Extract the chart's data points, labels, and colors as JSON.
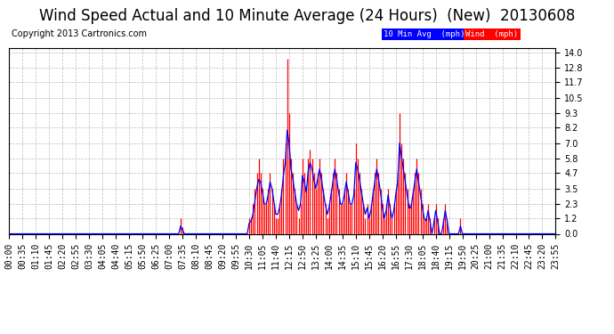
{
  "title": "Wind Speed Actual and 10 Minute Average (24 Hours)  (New)  20130608",
  "copyright": "Copyright 2013 Cartronics.com",
  "yticks": [
    0.0,
    1.2,
    2.3,
    3.5,
    4.7,
    5.8,
    7.0,
    8.2,
    9.3,
    10.5,
    11.7,
    12.8,
    14.0
  ],
  "ylim": [
    0.0,
    14.3
  ],
  "bg_color": "#ffffff",
  "plot_bg_color": "#ffffff",
  "grid_color": "#aaaaaa",
  "wind_color": "#ff0000",
  "avg_color": "#0000ff",
  "legend_avg_bg": "#0000ff",
  "legend_wind_bg": "#ff0000",
  "legend_avg_text": "10 Min Avg  (mph)",
  "legend_wind_text": "Wind  (mph)",
  "title_fontsize": 12,
  "copyright_fontsize": 7,
  "tick_fontsize": 7,
  "n_points": 288,
  "tick_step": 7,
  "wind_data": [
    0,
    0,
    0,
    0,
    0,
    0,
    0,
    0,
    0,
    0,
    0,
    0,
    0,
    0,
    0,
    0,
    0,
    0,
    0,
    0,
    0,
    0,
    0,
    0,
    0,
    0,
    0,
    0,
    0,
    0,
    0,
    0,
    0,
    0,
    0,
    0,
    0,
    0,
    0,
    0,
    0,
    0,
    0,
    0,
    0,
    0,
    0,
    0,
    0,
    0,
    0,
    0,
    0,
    0,
    0,
    0,
    0,
    0,
    0,
    0,
    0,
    0,
    0,
    0,
    0,
    0,
    0,
    0,
    0,
    0,
    0,
    0,
    0,
    0,
    0,
    0,
    0,
    0,
    0,
    0,
    0,
    0,
    0,
    0,
    0,
    0,
    0,
    0,
    0,
    0,
    1.2,
    0.5,
    0,
    0,
    0,
    0,
    0,
    0,
    0,
    0,
    0,
    0,
    0,
    0,
    0,
    0,
    0,
    0,
    0,
    0,
    0,
    0,
    0,
    0,
    0,
    0,
    0,
    0,
    0,
    0,
    0,
    0,
    0,
    0,
    0,
    0,
    1.2,
    1.2,
    2.3,
    3.5,
    4.7,
    5.8,
    4.7,
    3.5,
    2.3,
    2.3,
    3.5,
    4.7,
    3.5,
    2.3,
    1.2,
    1.2,
    2.3,
    3.5,
    5.8,
    7.0,
    13.5,
    9.3,
    5.8,
    4.7,
    3.5,
    2.3,
    1.2,
    2.3,
    5.8,
    4.7,
    3.5,
    5.8,
    6.5,
    5.8,
    4.7,
    3.5,
    4.7,
    5.8,
    4.7,
    3.5,
    2.3,
    1.2,
    2.3,
    3.5,
    4.7,
    5.8,
    4.7,
    3.5,
    2.3,
    2.3,
    3.5,
    4.7,
    3.5,
    2.3,
    2.3,
    3.5,
    7.0,
    5.8,
    4.7,
    3.5,
    2.3,
    1.2,
    2.3,
    1.2,
    2.3,
    3.5,
    4.7,
    5.8,
    4.7,
    3.5,
    2.3,
    1.2,
    2.3,
    3.5,
    2.3,
    1.2,
    2.3,
    3.5,
    4.7,
    9.3,
    7.0,
    5.8,
    4.7,
    3.5,
    2.3,
    2.3,
    3.5,
    4.7,
    5.8,
    4.7,
    3.5,
    2.3,
    1.2,
    1.2,
    2.3,
    1.2,
    0,
    1.2,
    2.3,
    1.2,
    0,
    0,
    1.2,
    2.3,
    1.2,
    0,
    0,
    0,
    0,
    0,
    0,
    1.2,
    0,
    0,
    0,
    0,
    0,
    0,
    0,
    0,
    0,
    0,
    0,
    0
  ],
  "avg_data": [
    0,
    0,
    0,
    0,
    0,
    0,
    0,
    0,
    0,
    0,
    0,
    0,
    0,
    0,
    0,
    0,
    0,
    0,
    0,
    0,
    0,
    0,
    0,
    0,
    0,
    0,
    0,
    0,
    0,
    0,
    0,
    0,
    0,
    0,
    0,
    0,
    0,
    0,
    0,
    0,
    0,
    0,
    0,
    0,
    0,
    0,
    0,
    0,
    0,
    0,
    0,
    0,
    0,
    0,
    0,
    0,
    0,
    0,
    0,
    0,
    0,
    0,
    0,
    0,
    0,
    0,
    0,
    0,
    0,
    0,
    0,
    0,
    0,
    0,
    0,
    0,
    0,
    0,
    0,
    0,
    0,
    0,
    0,
    0,
    0,
    0,
    0,
    0,
    0,
    0,
    0.6,
    0.3,
    0,
    0,
    0,
    0,
    0,
    0,
    0,
    0,
    0,
    0,
    0,
    0,
    0,
    0,
    0,
    0,
    0,
    0,
    0,
    0,
    0,
    0,
    0,
    0,
    0,
    0,
    0,
    0,
    0,
    0,
    0,
    0,
    0,
    0,
    0.8,
    1.0,
    1.5,
    2.5,
    3.5,
    4.2,
    4.0,
    3.2,
    2.3,
    2.3,
    3.0,
    4.0,
    3.5,
    2.5,
    1.5,
    1.5,
    2.0,
    3.0,
    4.5,
    5.5,
    8.0,
    7.0,
    5.0,
    4.2,
    3.2,
    2.3,
    1.8,
    2.3,
    4.5,
    4.0,
    3.2,
    4.8,
    5.5,
    5.0,
    4.2,
    3.5,
    4.2,
    5.0,
    4.2,
    3.2,
    2.3,
    1.5,
    2.0,
    3.0,
    4.0,
    5.0,
    4.2,
    3.2,
    2.3,
    2.3,
    3.0,
    4.0,
    3.2,
    2.3,
    2.3,
    3.0,
    5.5,
    5.0,
    4.2,
    3.2,
    2.3,
    1.5,
    2.0,
    1.2,
    1.8,
    3.0,
    4.0,
    5.0,
    4.2,
    3.2,
    2.0,
    1.2,
    1.8,
    3.0,
    2.0,
    1.2,
    1.8,
    3.0,
    4.0,
    7.0,
    6.0,
    5.0,
    4.0,
    3.0,
    2.0,
    2.0,
    3.0,
    4.0,
    5.0,
    4.0,
    3.0,
    2.0,
    1.2,
    1.0,
    1.8,
    1.0,
    0,
    0.8,
    1.8,
    1.0,
    0,
    0,
    0.8,
    1.8,
    1.0,
    0,
    0,
    0,
    0,
    0,
    0,
    0.6,
    0,
    0,
    0,
    0,
    0,
    0,
    0,
    0,
    0,
    0,
    0,
    0
  ]
}
